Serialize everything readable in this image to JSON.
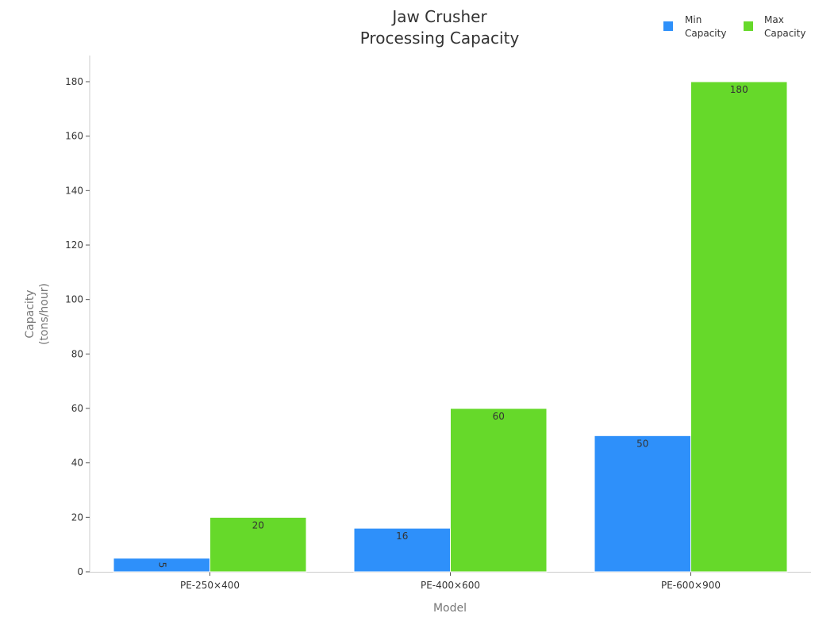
{
  "chart_data": {
    "type": "bar",
    "title": [
      "Jaw Crusher",
      "Processing Capacity"
    ],
    "xlabel": "Model",
    "ylabel": [
      "Capacity",
      "(tons/hour)"
    ],
    "categories": [
      "PE-250×400",
      "PE-400×600",
      "PE-600×900"
    ],
    "series": [
      {
        "name": [
          "Min",
          "Capacity"
        ],
        "color": "#2e90fa",
        "values": [
          5,
          16,
          50
        ]
      },
      {
        "name": [
          "Max",
          "Capacity"
        ],
        "color": "#66d92a",
        "values": [
          20,
          60,
          180
        ]
      }
    ],
    "ylim": [
      0,
      190
    ],
    "yticks": [
      0,
      20,
      40,
      60,
      80,
      100,
      120,
      140,
      160,
      180
    ],
    "legend_position": "top-right",
    "grid": false
  }
}
